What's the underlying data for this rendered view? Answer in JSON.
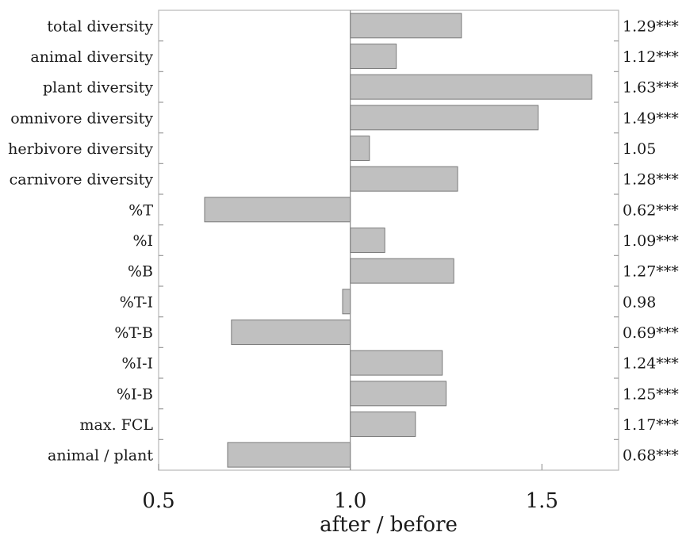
{
  "chart_data": {
    "type": "bar",
    "orientation": "horizontal",
    "categories": [
      "total diversity",
      "animal diversity",
      "plant diversity",
      "omnivore diversity",
      "herbivore diversity",
      "carnivore diversity",
      "%T",
      "%I",
      "%B",
      "%T-I",
      "%T-B",
      "%I-I",
      "%I-B",
      "max. FCL",
      "animal / plant"
    ],
    "values": [
      1.29,
      1.12,
      1.63,
      1.49,
      1.05,
      1.28,
      0.62,
      1.09,
      1.27,
      0.98,
      0.69,
      1.24,
      1.25,
      1.17,
      0.68
    ],
    "value_labels": [
      "1.29***",
      "1.12***",
      "1.63***",
      "1.49***",
      "1.05",
      "1.28***",
      "0.62***",
      "1.09***",
      "1.27***",
      "0.98",
      "0.69***",
      "1.24***",
      "1.25***",
      "1.17***",
      "0.68***"
    ],
    "baseline": 1.0,
    "xlim": [
      0.5,
      1.7
    ],
    "xticks": [
      0.5,
      1.0,
      1.5
    ],
    "xtick_labels": [
      "0.5",
      "1.0",
      "1.5"
    ],
    "xlabel": "after / before",
    "ylabel": "",
    "title": "",
    "grid": false,
    "legend": "none",
    "colors": {
      "bar_fill": "#c0c0c0",
      "bar_stroke": "#7a7a7a",
      "frame": "#bdbdbd"
    }
  }
}
